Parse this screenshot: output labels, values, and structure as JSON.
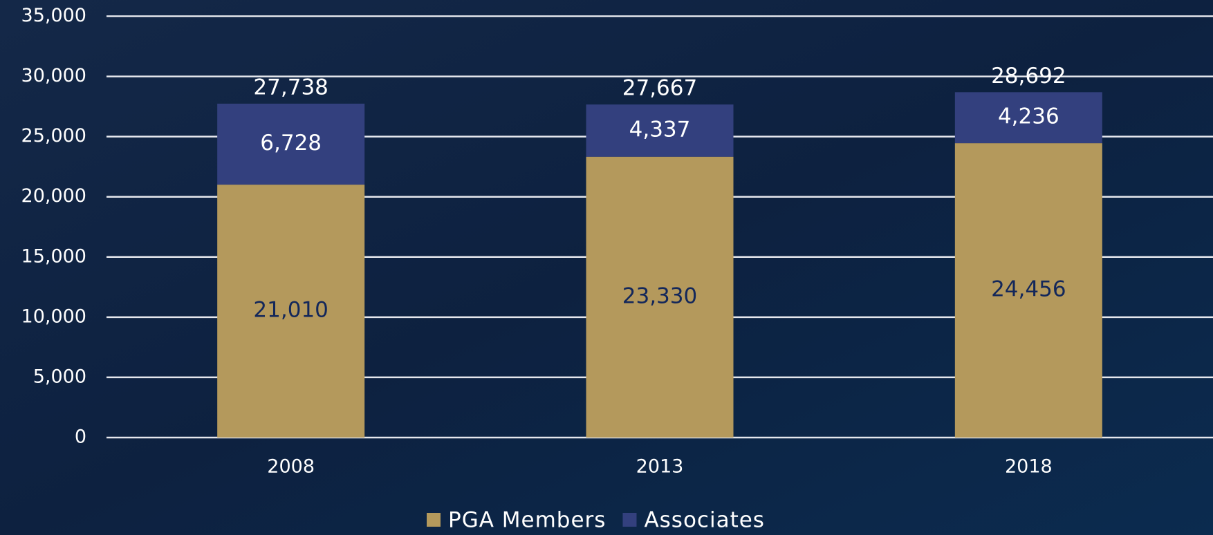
{
  "chart_data": {
    "type": "stacked_bar",
    "categories": [
      "2008",
      "2013",
      "2018"
    ],
    "series": [
      {
        "name": "PGA Members",
        "color": "#b4995c",
        "values": [
          21010,
          23330,
          24456
        ],
        "value_labels": [
          "21,010",
          "23,330",
          "24,456"
        ],
        "label_color": "#13275a"
      },
      {
        "name": "Associates",
        "color": "#33407e",
        "values": [
          6728,
          4337,
          4236
        ],
        "value_labels": [
          "6,728",
          "4,337",
          "4,236"
        ],
        "label_color": "#ffffff"
      }
    ],
    "totals": {
      "values": [
        27738,
        27667,
        28692
      ],
      "value_labels": [
        "27,738",
        "27,667",
        "28,692"
      ]
    },
    "ylim": [
      0,
      35000
    ],
    "yticks": [
      0,
      {
        "value": 5000,
        "label": "5,000"
      },
      {
        "value": 10000,
        "label": "10,000"
      },
      {
        "value": 15000,
        "label": "15,000"
      },
      {
        "value": 20000,
        "label": "20,000"
      },
      {
        "value": 25000,
        "label": "25,000"
      },
      {
        "value": 30000,
        "label": "30,000"
      },
      {
        "value": 35000,
        "label": "35,000"
      }
    ],
    "grid": true,
    "legend": "bottom"
  }
}
